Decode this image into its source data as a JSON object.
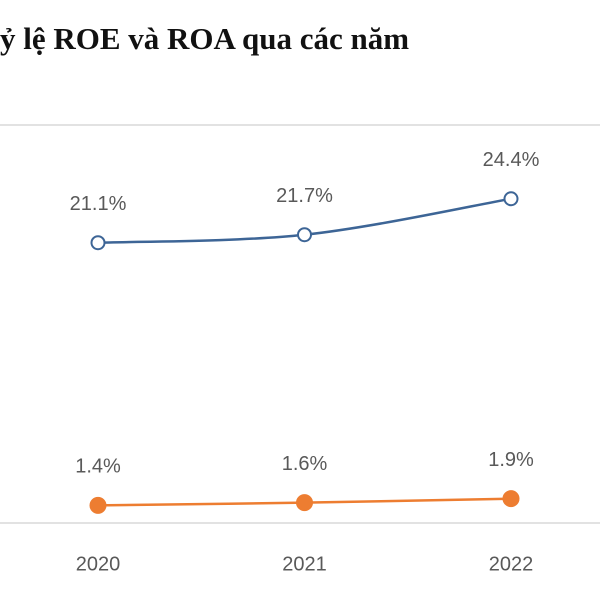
{
  "chart_data": {
    "type": "line",
    "title": "ỷ lệ ROE và ROA qua các năm",
    "categories": [
      "2020",
      "2021",
      "2022"
    ],
    "series": [
      {
        "color": "#3d6596",
        "marker": "hollow",
        "values": [
          21.1,
          21.7,
          24.4
        ],
        "value_labels": [
          "21.1%",
          "21.7%",
          "24.4%"
        ]
      },
      {
        "color": "#ed7d31",
        "marker": "filled",
        "values": [
          1.4,
          1.6,
          1.9
        ],
        "value_labels": [
          "1.4%",
          "1.6%",
          "1.9%"
        ]
      }
    ]
  }
}
